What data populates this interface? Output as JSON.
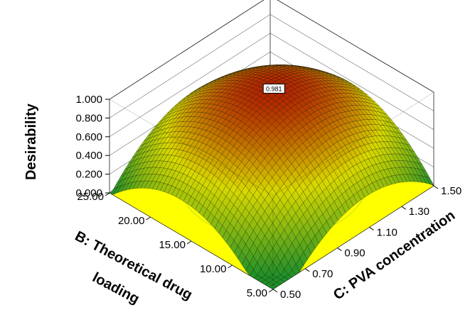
{
  "chart_data": {
    "type": "surface3d",
    "z_axis": {
      "label": "Desirability",
      "ticks": [
        "0.000",
        "0.200",
        "0.400",
        "0.600",
        "0.800",
        "1.000"
      ],
      "range": [
        0,
        1
      ]
    },
    "b_axis": {
      "label_line1": "B: Theoretical drug",
      "label_line2": "loading",
      "ticks": [
        "5.00",
        "10.00",
        "15.00",
        "20.00",
        "25.00"
      ],
      "range": [
        5,
        25
      ]
    },
    "c_axis": {
      "label": "C: PVA concentration",
      "ticks": [
        "0.50",
        "0.70",
        "0.90",
        "1.10",
        "1.30",
        "1.50"
      ],
      "range": [
        0.5,
        1.5
      ]
    },
    "max_annotation": {
      "text": "0.981",
      "b": 15.7,
      "c": 1.05,
      "value": 0.981
    },
    "colors": {
      "floor": "#ffff00",
      "low": "#1f8f2a",
      "mid": "#d8d800",
      "high": "#b01c00",
      "grid": "#000000"
    }
  }
}
